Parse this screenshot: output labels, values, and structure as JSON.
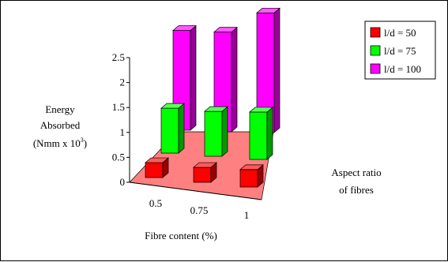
{
  "chart_data": {
    "type": "bar",
    "variant": "3d-column",
    "categories": [
      "0.5",
      "0.75",
      "1"
    ],
    "series": [
      {
        "name": "l/d = 50",
        "values": [
          0.3,
          0.3,
          0.35
        ],
        "color": "#ff0000"
      },
      {
        "name": "l/d = 75",
        "values": [
          0.9,
          0.9,
          0.95
        ],
        "color": "#00ff00"
      },
      {
        "name": "l/d = 100",
        "values": [
          2.0,
          2.0,
          2.4
        ],
        "color": "#ff00ff"
      }
    ],
    "ylabel": "Energy Absorbed (Nmm x 10^3)",
    "ylabel_lines": [
      "Energy",
      "Absorbed"
    ],
    "ylabel_units_base": "(Nmm x 10",
    "ylabel_units_exp": "3",
    "ylabel_units_close": ")",
    "xlabel": "Fibre content (%)",
    "zlabel_lines": [
      "Aspect ratio",
      "of fibres"
    ],
    "yticks": [
      "0",
      "0.5",
      "1",
      "1.5",
      "2",
      "2.5"
    ],
    "ylim": [
      0,
      2.5
    ],
    "legend": "top-right",
    "floor_color": "#ff8080"
  }
}
